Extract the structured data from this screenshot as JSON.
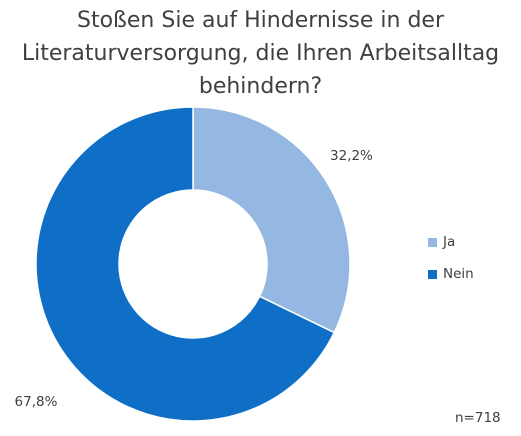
{
  "chart_data": {
    "type": "pie",
    "variant": "donut",
    "title_lines": [
      "Stoßen Sie auf Hindernisse in der",
      "Literaturversorgung, die Ihren Arbeitsalltag",
      "behindern?"
    ],
    "categories": [
      "Ja",
      "Nein"
    ],
    "values": [
      32.2,
      67.8
    ],
    "value_labels": [
      "32,2%",
      "67,8%"
    ],
    "colors": [
      "#95B8E3",
      "#0F6FC6"
    ],
    "legend_position": "right",
    "annotation": "n=718"
  }
}
